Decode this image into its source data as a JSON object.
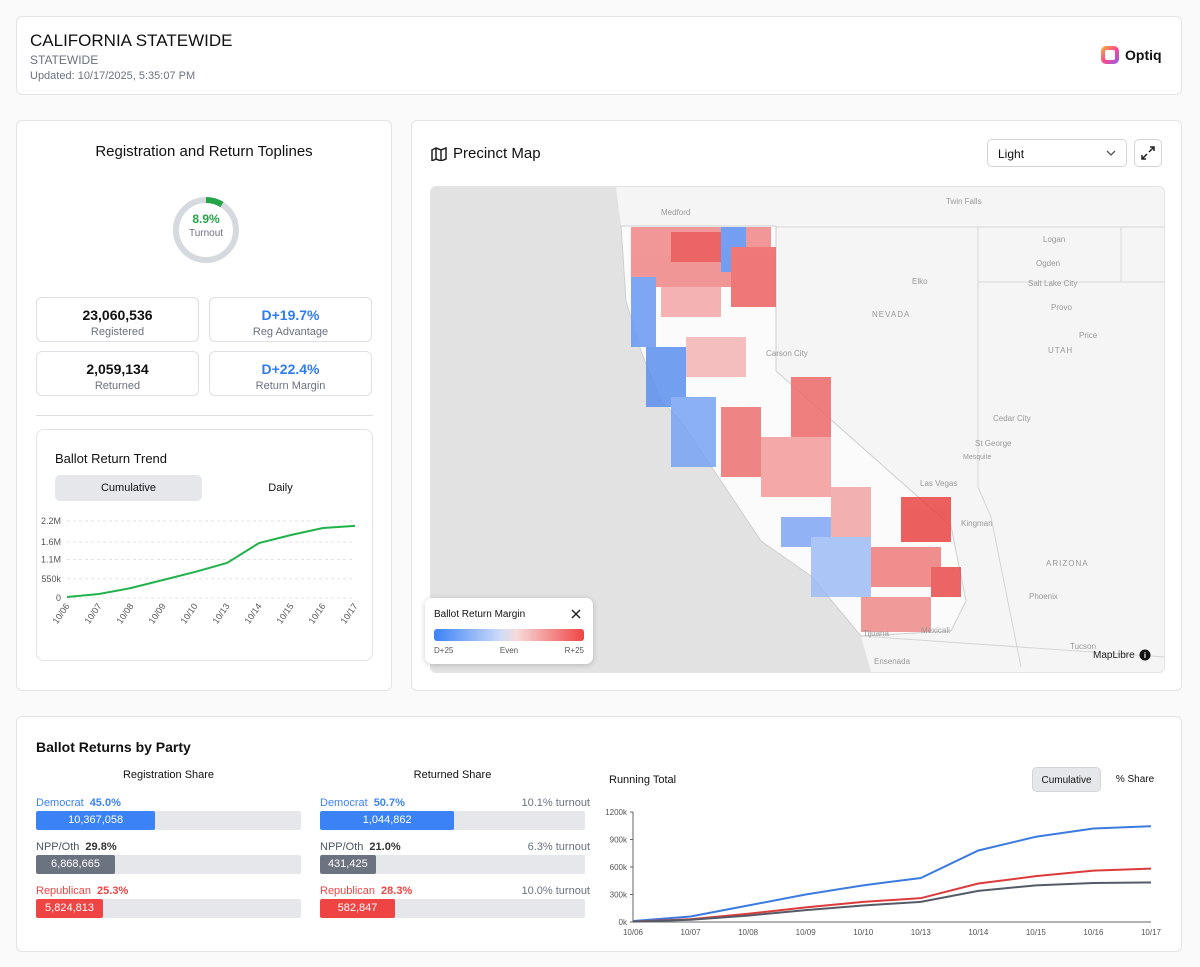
{
  "header": {
    "title": "CALIFORNIA STATEWIDE",
    "subtitle": "STATEWIDE",
    "updated": "Updated: 10/17/2025, 5:35:07 PM",
    "brand": "Optiq"
  },
  "toplines": {
    "title": "Registration and Return Toplines",
    "turnout": {
      "value": 8.9,
      "label": "8.9%",
      "caption": "Turnout",
      "color": "#22a447"
    },
    "stats": [
      {
        "value": "23,060,536",
        "label": "Registered"
      },
      {
        "value": "D+19.7%",
        "label": "Reg Advantage",
        "color": "#2f7cf0"
      },
      {
        "value": "2,059,134",
        "label": "Returned"
      },
      {
        "value": "D+22.4%",
        "label": "Return Margin",
        "color": "#2f7cf0"
      }
    ]
  },
  "map": {
    "title": "Precinct Map",
    "style_select": "Light",
    "legend": {
      "title": "Ballot Return Margin",
      "min": "D+25",
      "mid": "Even",
      "max": "R+25"
    },
    "attribution": "MapLibre",
    "labels": [
      "Medford",
      "Twin Falls",
      "Logan",
      "Ogden",
      "Salt Lake City",
      "Elko",
      "Provo",
      "NEVADA",
      "Price",
      "UTAH",
      "Carson City",
      "Cedar City",
      "St George",
      "Mesquite",
      "Las Vegas",
      "Kingman",
      "ARIZONA",
      "Phoenix",
      "Tucson",
      "Tijuana",
      "Mexicali",
      "Ensenada"
    ]
  },
  "party_returns": {
    "title": "Ballot Returns by Party",
    "registration": {
      "title": "Registration Share",
      "rows": [
        {
          "party": "Democrat",
          "share": 45.0,
          "share_label": "45.0%",
          "count": "10,367,058",
          "color": "#3b82f6"
        },
        {
          "party": "NPP/Oth",
          "share": 29.8,
          "share_label": "29.8%",
          "count": "6,868,665",
          "color": "#6b7280"
        },
        {
          "party": "Republican",
          "share": 25.3,
          "share_label": "25.3%",
          "count": "5,824,813",
          "color": "#ef4444"
        }
      ]
    },
    "returned": {
      "title": "Returned Share",
      "rows": [
        {
          "party": "Democrat",
          "share": 50.7,
          "share_label": "50.7%",
          "count": "1,044,862",
          "color": "#3b82f6",
          "turnout": "10.1% turnout"
        },
        {
          "party": "NPP/Oth",
          "share": 21.0,
          "share_label": "21.0%",
          "count": "431,425",
          "color": "#6b7280",
          "turnout": "6.3% turnout"
        },
        {
          "party": "Republican",
          "share": 28.3,
          "share_label": "28.3%",
          "count": "582,847",
          "color": "#ef4444",
          "turnout": "10.0% turnout"
        }
      ]
    }
  },
  "chart_data": [
    {
      "type": "line",
      "title": "Ballot Return Trend",
      "tabs": [
        "Cumulative",
        "Daily"
      ],
      "categories": [
        "10/06",
        "10/07",
        "10/08",
        "10/09",
        "10/10",
        "10/13",
        "10/14",
        "10/15",
        "10/16",
        "10/17"
      ],
      "values": [
        30000,
        115000,
        285000,
        515000,
        745000,
        1000000,
        1570000,
        1800000,
        2000000,
        2059134
      ],
      "color": "#22b24c",
      "ylim": [
        0,
        2200000
      ],
      "yticks": [
        0,
        {
          "value": 550000,
          "label": "550k"
        },
        {
          "value": 1100000,
          "label": "1.1M"
        },
        {
          "value": 1600000,
          "label": "1.6M"
        },
        {
          "value": 2200000,
          "label": "2.2M"
        }
      ],
      "grid": true
    },
    {
      "type": "line",
      "title": "Running Total",
      "tabs": [
        "Cumulative",
        "% Share"
      ],
      "categories": [
        "10/06",
        "10/07",
        "10/08",
        "10/09",
        "10/10",
        "10/13",
        "10/14",
        "10/15",
        "10/16",
        "10/17"
      ],
      "series": [
        {
          "color": "#3b7be0",
          "values": [
            10000,
            60000,
            180000,
            300000,
            400000,
            480000,
            780000,
            930000,
            1020000,
            1044862
          ]
        },
        {
          "color": "#dc3b3b",
          "values": [
            5000,
            30000,
            90000,
            160000,
            220000,
            260000,
            420000,
            500000,
            560000,
            582847
          ]
        },
        {
          "color": "#555b66",
          "values": [
            4000,
            25000,
            70000,
            130000,
            180000,
            220000,
            340000,
            400000,
            425000,
            431425
          ]
        }
      ],
      "ylim": [
        0,
        1200000
      ],
      "yticks": [
        {
          "value": 0,
          "label": "0k"
        },
        {
          "value": 300000,
          "label": "300k"
        },
        {
          "value": 600000,
          "label": "600k"
        },
        {
          "value": 900000,
          "label": "900k"
        },
        {
          "value": 1200000,
          "label": "1200k"
        }
      ],
      "grid": false
    }
  ]
}
